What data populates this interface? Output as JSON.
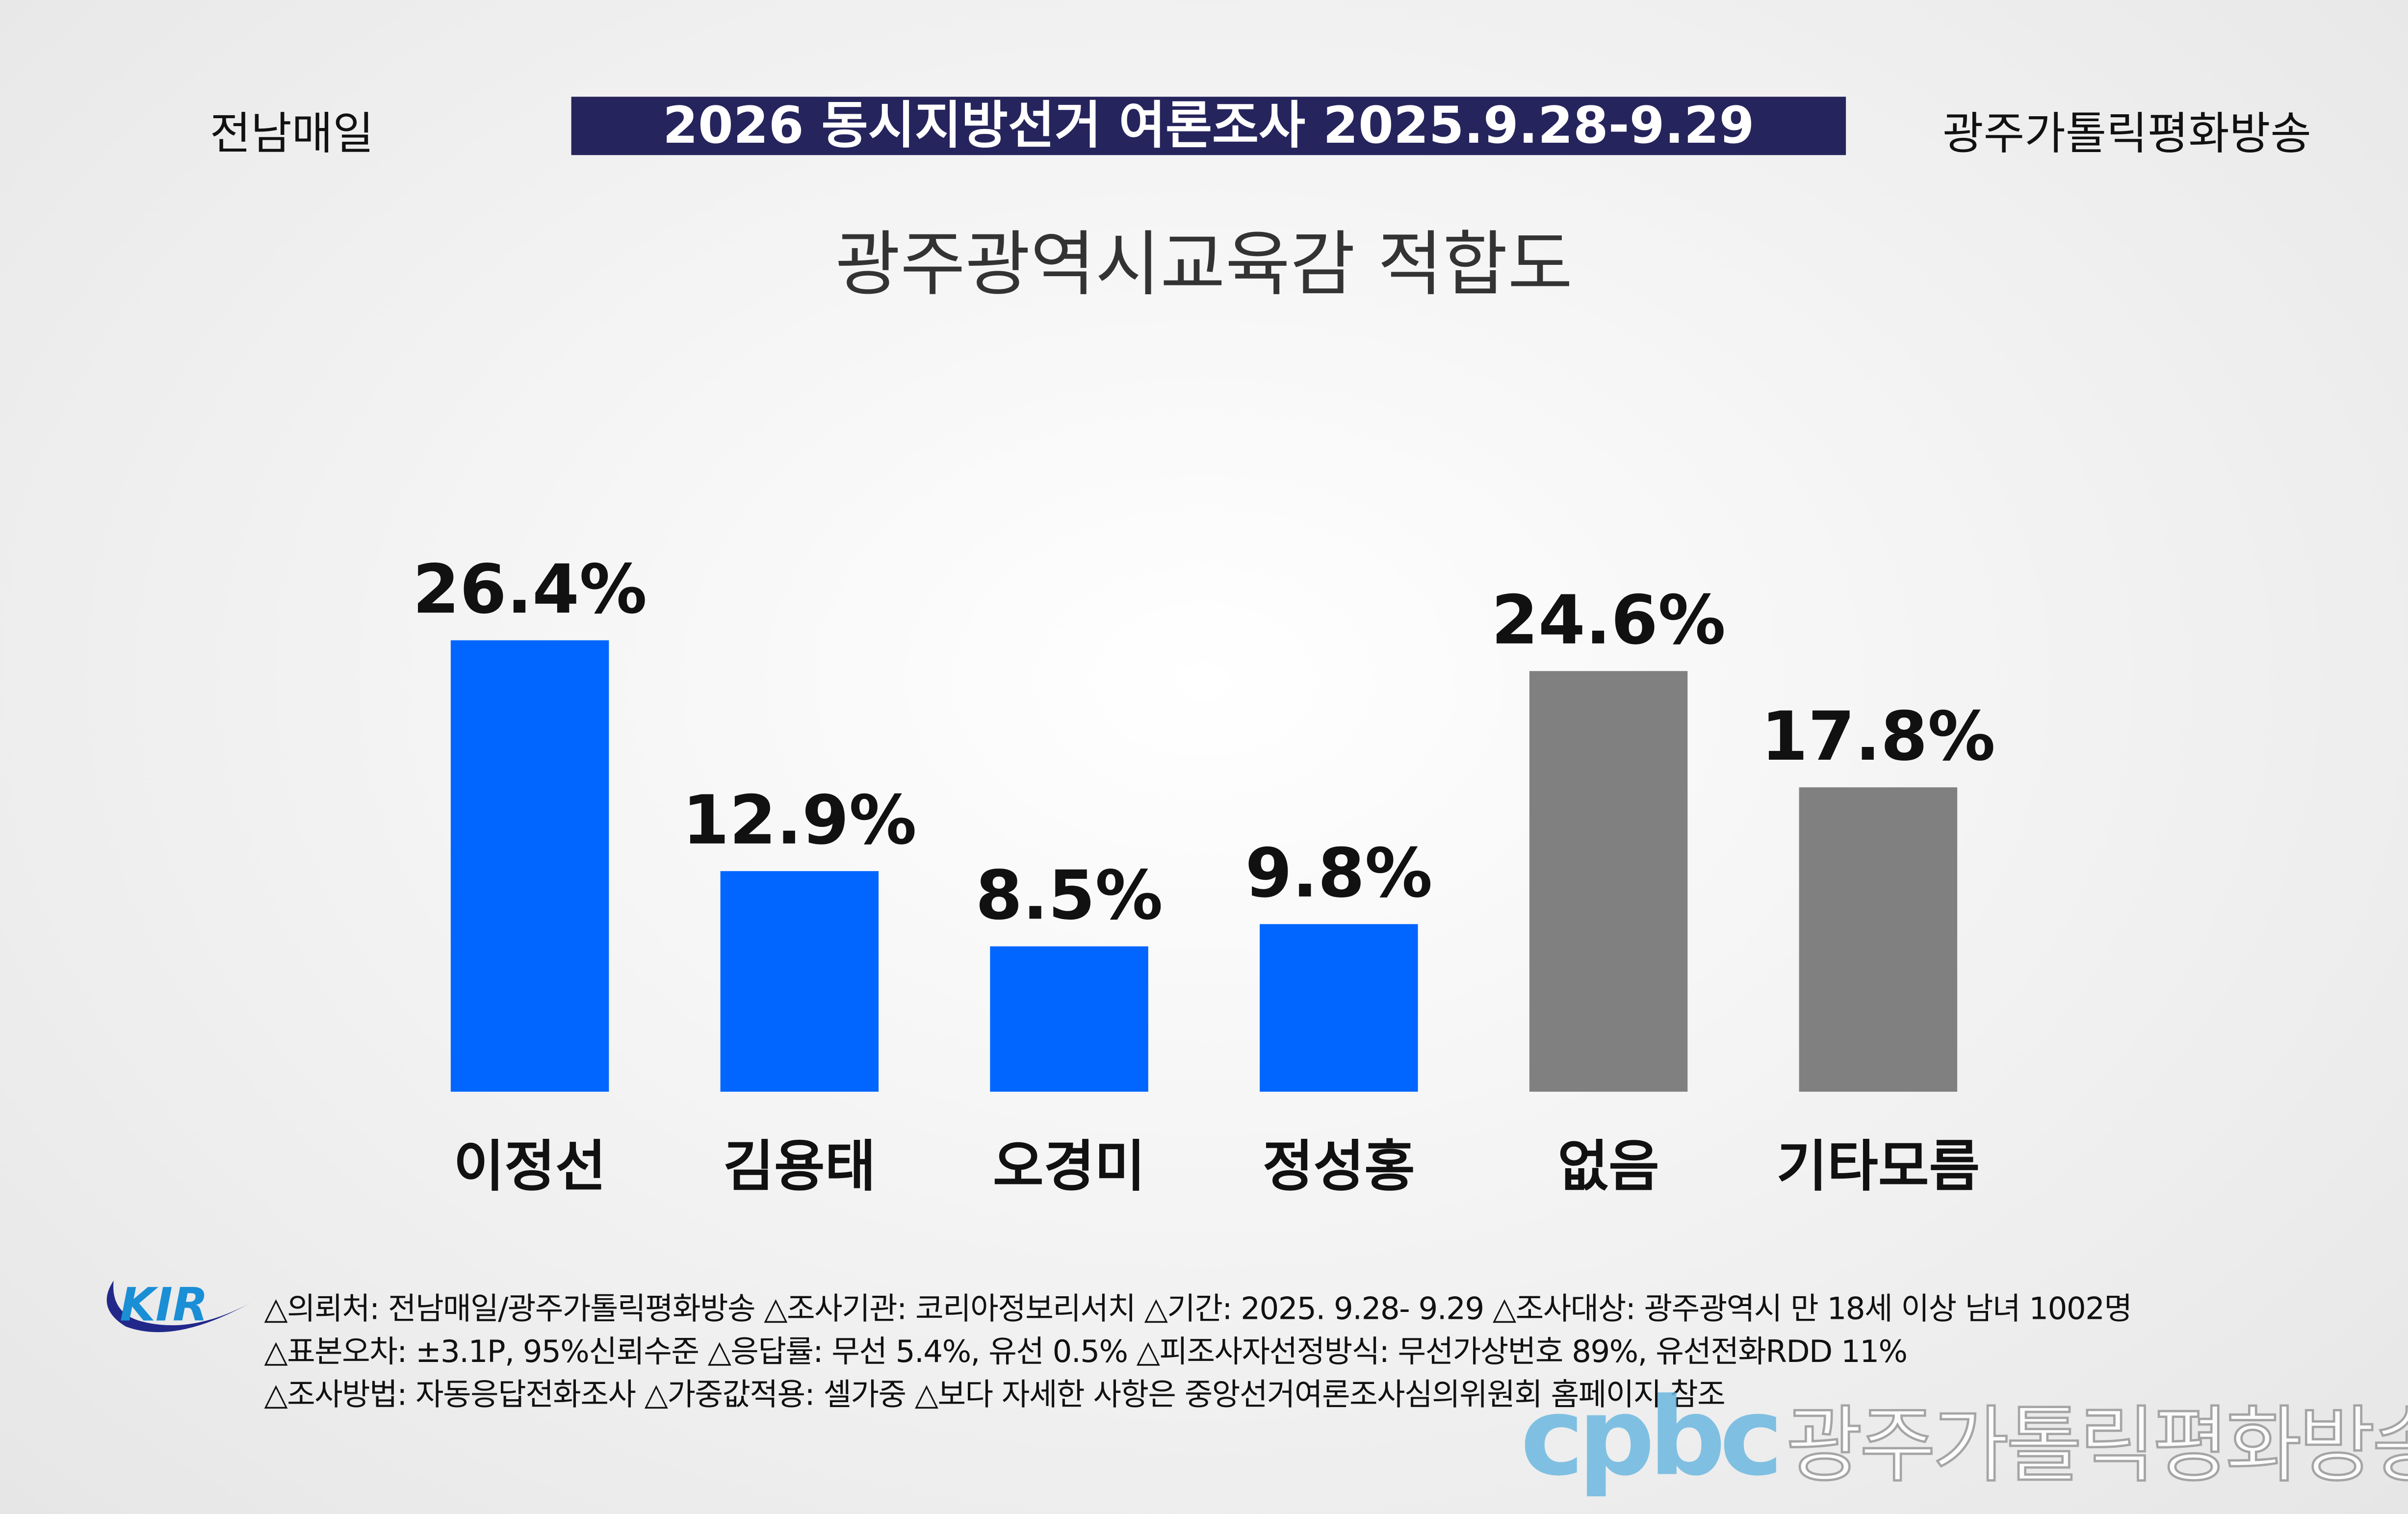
{
  "header": {
    "left_source": "전남매일",
    "banner": "2026 동시지방선거 여론조사 2025.9.28-9.29",
    "right_source": "광주가톨릭평화방송"
  },
  "chart_data": {
    "type": "bar",
    "title": "광주광역시교육감 적합도",
    "categories": [
      "이정선",
      "김용태",
      "오경미",
      "정성홍",
      "없음",
      "기타모름"
    ],
    "values": [
      26.4,
      12.9,
      8.5,
      9.8,
      24.6,
      17.8
    ],
    "value_labels": [
      "26.4%",
      "12.9%",
      "8.5%",
      "9.8%",
      "24.6%",
      "17.8%"
    ],
    "colors": [
      "#0066ff",
      "#0066ff",
      "#0066ff",
      "#0066ff",
      "#808080",
      "#808080"
    ],
    "ylim": [
      0,
      30
    ],
    "grid": false,
    "xlabel": "",
    "ylabel": ""
  },
  "footnotes": [
    "△의뢰처: 전남매일/광주가톨릭평화방송 △조사기관: 코리아정보리서치 △기간: 2025. 9.28- 9.29 △조사대상: 광주광역시 만 18세 이상 남녀 1002명",
    "△표본오차: ±3.1P, 95%신뢰수준 △응답률: 무선 5.4%, 유선 0.5% △피조사자선정방식: 무선가상번호 89%, 유선전화RDD 11%",
    "△조사방법: 자동응답전화조사 △가중값적용: 셀가중 △보다 자세한 사항은 중앙선거여론조사심의위원회 홈페이지 참조"
  ],
  "logos": {
    "kir": "KIR",
    "cpbc": "cpbc",
    "cpbc_name": "광주가톨릭평화방송"
  }
}
